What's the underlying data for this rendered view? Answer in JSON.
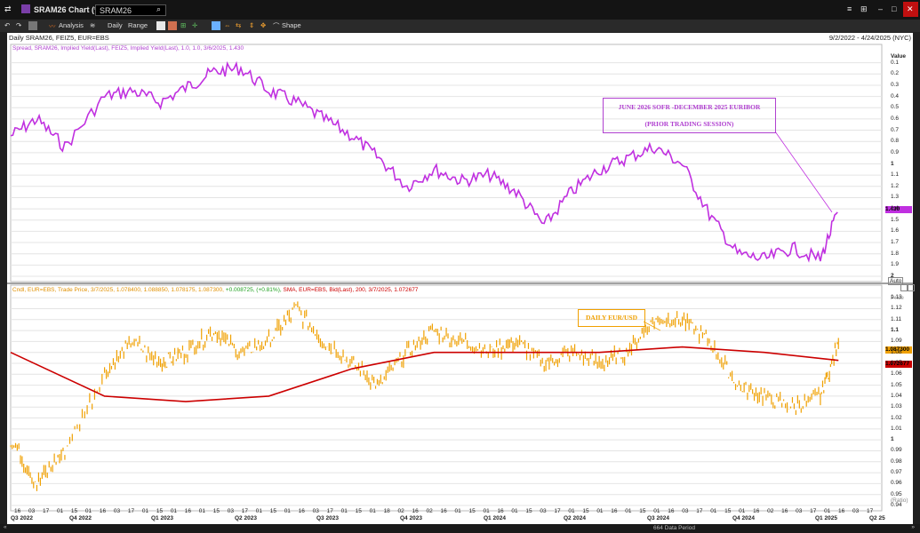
{
  "window": {
    "title": "SRAM26 Chart (*)",
    "search_value": "SRAM26",
    "controls": [
      "⊞",
      "–",
      "□",
      "✕"
    ]
  },
  "toolbar": {
    "analysis": "Analysis",
    "periodicity": "Daily",
    "range": "Range",
    "shape": "Shape"
  },
  "chart_header": {
    "left": "Daily SRAM26, FEIZ5, EUR=EBS",
    "right": "9/2/2022 - 4/24/2025 (NYC)"
  },
  "upper_panel": {
    "legend": "Spread, SRAM26, Implied Yield(Last), FEIZ5, Implied Yield(Last),  1.0, 1.0, 3/6/2025, 1.430",
    "axis_title": "Value",
    "last_value": "1.430",
    "auto_label": "Auto",
    "ticks": [
      "0.1",
      "0.2",
      "0.3",
      "0.4",
      "0.5",
      "0.6",
      "0.7",
      "0.8",
      "0.9",
      "1",
      "1.1",
      "1.2",
      "1.3",
      "1.4",
      "1.5",
      "1.6",
      "1.7",
      "1.8",
      "1.9",
      "2"
    ],
    "annotation_line1": "JUNE 2026 SOFR -DECEMBER 2025 EURIBOR",
    "annotation_line2": "(PRIOR TRADING SESSION)",
    "line_color": "#c030e0"
  },
  "lower_panel": {
    "legend_a": "Cndl, EUR=EBS, Trade Price,  3/7/2025, 1.078400, 1.088850, 1.078175, 1.087300,",
    "legend_b": "+0.008725, (+0.81%),",
    "legend_c": "SMA, EUR=EBS, Bid(Last),  200,  3/7/2025, 1.072677",
    "axis_title": "Price",
    "last_price": "1.087300",
    "sma_value": "1.072677",
    "ratio_label": "(Ratio)",
    "ticks": [
      "1.13",
      "1.12",
      "1.11",
      "1.1",
      "1.09",
      "1.08",
      "1.07",
      "1.06",
      "1.05",
      "1.04",
      "1.03",
      "1.02",
      "1.01",
      "1",
      "0.99",
      "0.98",
      "0.97",
      "0.96",
      "0.95",
      "0.94"
    ],
    "annotation": "DAILY EUR/USD",
    "price_color": "#f0a000",
    "sma_color": "#cc0000"
  },
  "x_axis": {
    "days": [
      "16",
      "03",
      "17",
      "01",
      "15",
      "01",
      "16",
      "03",
      "17",
      "01",
      "15",
      "01",
      "16",
      "01",
      "15",
      "03",
      "17",
      "01",
      "15",
      "01",
      "16",
      "03",
      "17",
      "01",
      "15",
      "01",
      "18",
      "02",
      "16",
      "02",
      "16",
      "01",
      "15",
      "01",
      "16",
      "01",
      "15",
      "03",
      "17",
      "01",
      "15",
      "01",
      "16",
      "01",
      "15",
      "01",
      "16",
      "03",
      "17",
      "01",
      "15",
      "01",
      "16",
      "02",
      "16",
      "03",
      "17",
      "01",
      "16",
      "03",
      "17"
    ],
    "quarters": [
      "Q3 2022",
      "Q4 2022",
      "Q1 2023",
      "Q2 2023",
      "Q3 2023",
      "Q4 2023",
      "Q1 2024",
      "Q2 2024",
      "Q3 2024",
      "Q4 2024",
      "Q1 2025",
      "Q2 25"
    ]
  },
  "status_bar": {
    "text": "664 Data Period"
  },
  "chart_data": [
    {
      "type": "line",
      "title": "",
      "series": [
        {
          "name": "Spread, SRAM26, Implied Yield(Last), FEIZ5, Implied Yield(Last)",
          "x": [
            "2022-09-02",
            "2022-10-01",
            "2022-11-01",
            "2022-12-15",
            "2023-01-15",
            "2023-02-15",
            "2023-03-20",
            "2023-04-15",
            "2023-05-15",
            "2023-06-15",
            "2023-07-15",
            "2023-08-15",
            "2023-09-15",
            "2023-10-15",
            "2023-11-15",
            "2023-12-15",
            "2024-01-15",
            "2024-02-15",
            "2024-03-15",
            "2024-04-15",
            "2024-05-15",
            "2024-06-15",
            "2024-07-15",
            "2024-08-15",
            "2024-09-15",
            "2024-10-15",
            "2024-11-15",
            "2024-12-15",
            "2025-01-15",
            "2025-02-15",
            "2025-03-06"
          ],
          "values": [
            0.75,
            0.6,
            0.85,
            0.4,
            0.35,
            0.45,
            0.3,
            0.18,
            0.15,
            0.35,
            0.45,
            0.6,
            0.75,
            0.95,
            1.2,
            1.05,
            1.15,
            1.1,
            1.25,
            1.55,
            1.25,
            1.05,
            0.95,
            0.85,
            1.0,
            1.45,
            1.8,
            1.85,
            1.75,
            1.85,
            1.43
          ]
        }
      ],
      "ylim": [
        2.0,
        0.0
      ],
      "ylabel": "Value"
    },
    {
      "type": "line",
      "title": "",
      "series": [
        {
          "name": "EUR=EBS Trade Price",
          "x": [
            "2022-09-02",
            "2022-10-01",
            "2022-11-01",
            "2022-12-15",
            "2023-01-15",
            "2023-02-15",
            "2023-03-15",
            "2023-04-15",
            "2023-05-15",
            "2023-06-15",
            "2023-07-15",
            "2023-08-15",
            "2023-09-15",
            "2023-10-15",
            "2023-11-15",
            "2023-12-15",
            "2024-01-15",
            "2024-02-15",
            "2024-03-15",
            "2024-04-15",
            "2024-05-15",
            "2024-06-15",
            "2024-07-15",
            "2024-08-15",
            "2024-09-15",
            "2024-10-15",
            "2024-11-15",
            "2024-12-15",
            "2025-01-15",
            "2025-02-15",
            "2025-03-07"
          ],
          "values": [
            1.0,
            0.96,
            0.99,
            1.06,
            1.09,
            1.07,
            1.08,
            1.1,
            1.08,
            1.09,
            1.12,
            1.09,
            1.07,
            1.05,
            1.08,
            1.1,
            1.09,
            1.08,
            1.09,
            1.07,
            1.08,
            1.07,
            1.08,
            1.11,
            1.11,
            1.09,
            1.05,
            1.04,
            1.03,
            1.04,
            1.0873
          ]
        },
        {
          "name": "SMA 200",
          "x": [
            "2022-09-02",
            "2022-12-15",
            "2023-03-15",
            "2023-06-15",
            "2023-09-15",
            "2023-12-15",
            "2024-03-15",
            "2024-06-15",
            "2024-09-15",
            "2024-12-15",
            "2025-03-07"
          ],
          "values": [
            1.08,
            1.04,
            1.035,
            1.04,
            1.065,
            1.08,
            1.08,
            1.08,
            1.085,
            1.08,
            1.0727
          ]
        }
      ],
      "ylim": [
        0.94,
        1.135
      ],
      "ylabel": "Price"
    }
  ]
}
